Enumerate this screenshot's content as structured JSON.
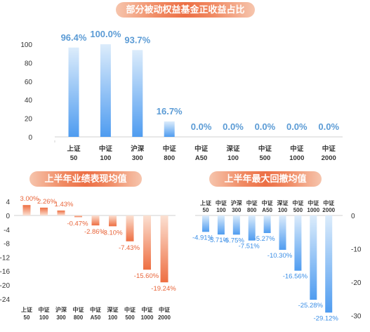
{
  "charts": {
    "passive_share": {
      "title": "部分被动权益基金正收益占比"
    },
    "h1_performance": {
      "title": "上半年业绩表现均值"
    },
    "h1_drawdown": {
      "title": "上半年最大回撤均值"
    }
  },
  "chart_data": [
    {
      "type": "bar",
      "title": "部分被动权益基金正收益占比",
      "categories": [
        [
          "上证",
          "50"
        ],
        [
          "中证",
          "100"
        ],
        [
          "沪深",
          "300"
        ],
        [
          "中证",
          "800"
        ],
        [
          "中证",
          "A50"
        ],
        [
          "深证",
          "100"
        ],
        [
          "中证",
          "500"
        ],
        [
          "中证",
          "1000"
        ],
        [
          "中证",
          "2000"
        ]
      ],
      "values": [
        96.4,
        100.0,
        93.7,
        16.7,
        0.0,
        0.0,
        0.0,
        0.0,
        0.0
      ],
      "value_labels": [
        "96.4%",
        "100.0%",
        "93.7%",
        "16.7%",
        "0.0%",
        "0.0%",
        "0.0%",
        "0.0%",
        "0.0%"
      ],
      "ylim": [
        0,
        100
      ],
      "yticks": [
        "0",
        "20",
        "40",
        "60",
        "80",
        "100"
      ],
      "color": "#5aa7f0"
    },
    {
      "type": "bar",
      "title": "上半年业绩表现均值",
      "categories": [
        [
          "上证",
          "50"
        ],
        [
          "中证",
          "100"
        ],
        [
          "沪深",
          "300"
        ],
        [
          "中证",
          "800"
        ],
        [
          "中证",
          "A50"
        ],
        [
          "深证",
          "100"
        ],
        [
          "中证",
          "500"
        ],
        [
          "中证",
          "1000"
        ],
        [
          "中证",
          "2000"
        ]
      ],
      "values": [
        3.0,
        2.26,
        1.43,
        -0.47,
        -2.86,
        -3.1,
        -7.43,
        -15.6,
        -19.24
      ],
      "value_labels": [
        "3.00%",
        "2.26%",
        "1.43%",
        "-0.47%",
        "-2.86%",
        "-3.10%",
        "-7.43%",
        "-15.60%",
        "-19.24%"
      ],
      "ylim": [
        -24,
        4
      ],
      "yticks": [
        "4",
        "0",
        "-4",
        "-8",
        "-12",
        "-16",
        "-20",
        "-24"
      ],
      "color": "#ee7a4f"
    },
    {
      "type": "bar",
      "title": "上半年最大回撤均值",
      "categories": [
        [
          "上证",
          "50"
        ],
        [
          "中证",
          "100"
        ],
        [
          "沪深",
          "300"
        ],
        [
          "中证",
          "800"
        ],
        [
          "中证",
          "A50"
        ],
        [
          "深证",
          "100"
        ],
        [
          "中证",
          "500"
        ],
        [
          "中证",
          "1000"
        ],
        [
          "中证",
          "2000"
        ]
      ],
      "values": [
        -4.91,
        -5.71,
        -5.75,
        -7.51,
        -5.27,
        -10.3,
        -16.56,
        -25.28,
        -29.12
      ],
      "value_labels": [
        "-4.91%",
        "-5.71%",
        "-5.75%",
        "-7.51%",
        "-5.27%",
        "-10.30%",
        "-16.56%",
        "-25.28%",
        "-29.12%"
      ],
      "ylim": [
        -30,
        0
      ],
      "yticks": [
        "0",
        "-10",
        "-20",
        "-30"
      ],
      "color": "#5aa7f0"
    }
  ]
}
